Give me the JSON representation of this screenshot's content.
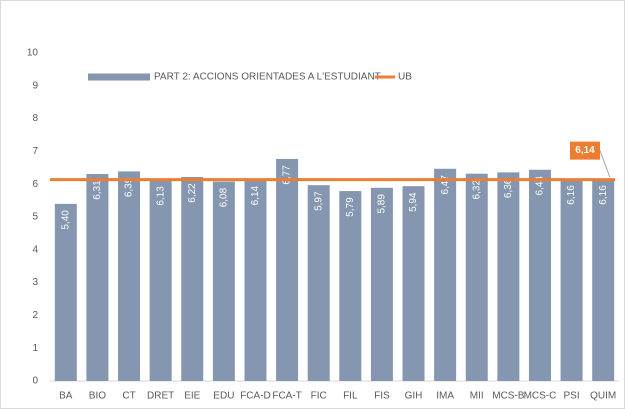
{
  "chart_data": {
    "type": "bar",
    "categories": [
      "BA",
      "BIO",
      "CT",
      "DRET",
      "EIE",
      "EDU",
      "FCA-D",
      "FCA-T",
      "FIC",
      "FIL",
      "FIS",
      "GIH",
      "IMA",
      "MII",
      "MCS-B",
      "MCS-C",
      "PSI",
      "QUIM"
    ],
    "series": [
      {
        "name": "PART 2: ACCIONS ORIENTADES A L'ESTUDIANT",
        "color": "#8496b0",
        "type": "bar",
        "values": [
          5.4,
          6.31,
          6.39,
          6.13,
          6.22,
          6.08,
          6.14,
          6.77,
          5.97,
          5.79,
          5.89,
          5.94,
          6.47,
          6.32,
          6.36,
          6.44,
          6.16,
          6.16
        ],
        "value_labels": [
          "5,40",
          "6,31",
          "6,39",
          "6,13",
          "6,22",
          "6,08",
          "6,14",
          "6,77",
          "5,97",
          "5,79",
          "5,89",
          "5,94",
          "6,47",
          "6,32",
          "6,36",
          "6,44",
          "6,16",
          "6,16"
        ]
      },
      {
        "name": "UB",
        "color": "#ed7d31",
        "type": "line",
        "values": [
          6.14,
          6.14,
          6.14,
          6.14,
          6.14,
          6.14,
          6.14,
          6.14,
          6.14,
          6.14,
          6.14,
          6.14,
          6.14,
          6.14,
          6.14,
          6.14,
          6.14,
          6.14
        ]
      }
    ],
    "annotation": {
      "text": "6,14",
      "value": 6.14
    },
    "ylim": [
      0,
      10
    ],
    "yticks": [
      0,
      1,
      2,
      3,
      4,
      5,
      6,
      7,
      8,
      9,
      10
    ],
    "grid": false,
    "legend": "top"
  }
}
